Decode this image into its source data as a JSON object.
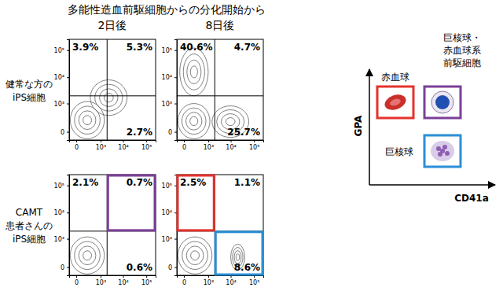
{
  "figure": {
    "title": "多能性造血前駆細胞からの分化開始から",
    "columns": [
      "2日後",
      "8日後"
    ],
    "rows": [
      [
        "健常な方の",
        "iPS細胞"
      ],
      [
        "CAMT",
        "患者さんの",
        "iPS細胞"
      ]
    ]
  },
  "key": {
    "x_label": "CD41a",
    "y_label": "GPA",
    "items": [
      {
        "label": [
          "赤血球"
        ],
        "color": "#e5322d"
      },
      {
        "label": [
          "巨核球・",
          "赤血球系",
          "前駆細胞"
        ],
        "color": "#7b3f98"
      },
      {
        "label": [
          "巨核球"
        ],
        "color": "#2b8fd6"
      }
    ]
  },
  "chart_data": [
    {
      "type": "contour",
      "log": true,
      "xlim": [
        -100,
        250000
      ],
      "ylim": [
        -100,
        250000
      ],
      "xticks": [
        0,
        {
          "value": 1000,
          "label": "10³"
        },
        {
          "value": 10000,
          "label": "10⁴"
        },
        {
          "value": 100000,
          "label": "10⁵"
        }
      ],
      "yticks": [
        0,
        {
          "value": 1000,
          "label": "10³"
        },
        {
          "value": 10000,
          "label": "10⁴"
        },
        {
          "value": 100000,
          "label": "10⁵"
        }
      ],
      "gate_x": 2000,
      "gate_y": 2000,
      "values": [
        3.9,
        5.3,
        2.7
      ],
      "value_labels": [
        "3.9%",
        "5.3%",
        "2.7%"
      ],
      "colors": [
        null,
        null,
        null
      ],
      "populations": [
        {
          "x": [
            -80,
            1500
          ],
          "y": [
            -80,
            1200
          ]
        },
        {
          "x": [
            300,
            15000
          ],
          "y": [
            300,
            8000
          ]
        }
      ]
    },
    {
      "type": "contour",
      "log": true,
      "xlim": [
        -100,
        250000
      ],
      "ylim": [
        -100,
        250000
      ],
      "xticks": [
        0,
        {
          "value": 1000,
          "label": "10³"
        },
        {
          "value": 10000,
          "label": "10⁴"
        },
        {
          "value": 100000,
          "label": "10⁵"
        }
      ],
      "yticks": [
        0,
        {
          "value": 1000,
          "label": "10³"
        },
        {
          "value": 10000,
          "label": "10⁴"
        },
        {
          "value": 100000,
          "label": "10⁵"
        }
      ],
      "gate_x": 2000,
      "gate_y": 2000,
      "values": [
        40.6,
        4.7,
        25.7
      ],
      "value_labels": [
        "40.6%",
        "4.7%",
        "25.7%"
      ],
      "colors": [
        null,
        null,
        null
      ],
      "populations": [
        {
          "x": [
            -80,
            1200
          ],
          "y": [
            -80,
            1000
          ]
        },
        {
          "x": [
            -50,
            1000
          ],
          "y": [
            2000,
            120000
          ]
        },
        {
          "x": [
            1500,
            60000
          ],
          "y": [
            -60,
            800
          ]
        }
      ]
    },
    {
      "type": "contour",
      "log": true,
      "xlim": [
        -100,
        250000
      ],
      "ylim": [
        -100,
        250000
      ],
      "xticks": [
        0,
        {
          "value": 1000,
          "label": "10³"
        },
        {
          "value": 10000,
          "label": "10⁴"
        },
        {
          "value": 100000,
          "label": "10⁵"
        }
      ],
      "yticks": [
        0,
        {
          "value": 1000,
          "label": "10³"
        },
        {
          "value": 10000,
          "label": "10⁴"
        },
        {
          "value": 100000,
          "label": "10⁵"
        }
      ],
      "gate_x": 2000,
      "gate_y": 2000,
      "values": [
        2.1,
        0.7,
        0.6
      ],
      "value_labels": [
        "2.1%",
        "0.7%",
        "0.6%"
      ],
      "colors": [
        null,
        "#7b3f98",
        null
      ],
      "populations": [
        {
          "x": [
            -80,
            1500
          ],
          "y": [
            -80,
            1200
          ]
        }
      ]
    },
    {
      "type": "contour",
      "log": true,
      "xlim": [
        -100,
        250000
      ],
      "ylim": [
        -100,
        250000
      ],
      "xticks": [
        0,
        {
          "value": 1000,
          "label": "10³"
        },
        {
          "value": 10000,
          "label": "10⁴"
        },
        {
          "value": 100000,
          "label": "10⁵"
        }
      ],
      "yticks": [
        0,
        {
          "value": 1000,
          "label": "10³"
        },
        {
          "value": 10000,
          "label": "10⁴"
        },
        {
          "value": 100000,
          "label": "10⁵"
        }
      ],
      "gate_x": 2000,
      "gate_y": 2000,
      "values": [
        2.5,
        1.1,
        8.6
      ],
      "value_labels": [
        "2.5%",
        "1.1%",
        "8.6%"
      ],
      "colors": [
        "#e5322d",
        null,
        "#2b8fd6"
      ],
      "populations": [
        {
          "x": [
            -80,
            1500
          ],
          "y": [
            -80,
            1200
          ]
        },
        {
          "x": [
            10000,
            40000
          ],
          "y": [
            -30,
            600
          ]
        }
      ]
    }
  ]
}
